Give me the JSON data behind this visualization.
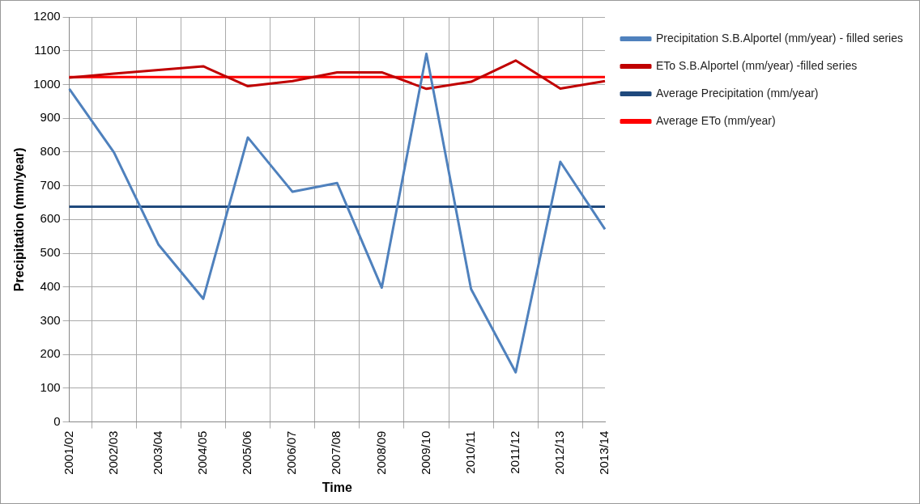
{
  "chart_data": {
    "type": "line",
    "xlabel": "Time",
    "ylabel": "Precipitation (mm/year)",
    "categories": [
      "2001/02",
      "2002/03",
      "2003/04",
      "2004/05",
      "2005/06",
      "2006/07",
      "2007/08",
      "2008/09",
      "2009/10",
      "2010/11",
      "2011/12",
      "2012/13",
      "2013/14"
    ],
    "series": [
      {
        "name": "Precipitation S.B.Alportel (mm/year) - filled series",
        "color": "#4f81bd",
        "values": [
          987,
          799,
          525,
          365,
          843,
          682,
          708,
          398,
          1091,
          394,
          147,
          771,
          571
        ]
      },
      {
        "name": "ETo S.B.Alportel (mm/year) -filled series",
        "color": "#c00000",
        "values": [
          1020,
          1032,
          1043,
          1054,
          995,
          1010,
          1036,
          1036,
          987,
          1008,
          1071,
          988,
          1010
        ]
      },
      {
        "name": "Average Precipitation (mm/year)",
        "color": "#1f497d",
        "values": [
          638,
          638,
          638,
          638,
          638,
          638,
          638,
          638,
          638,
          638,
          638,
          638,
          638
        ]
      },
      {
        "name": "Average ETo (mm/year)",
        "color": "#ff0000",
        "values": [
          1022,
          1022,
          1022,
          1022,
          1022,
          1022,
          1022,
          1022,
          1022,
          1022,
          1022,
          1022,
          1022
        ]
      }
    ],
    "ylim": [
      0,
      1200
    ],
    "yticks": [
      0,
      100,
      200,
      300,
      400,
      500,
      600,
      700,
      800,
      900,
      1000,
      1100,
      1200
    ],
    "grid": true,
    "legend": "right",
    "marker": "none",
    "line_style": "solid"
  }
}
